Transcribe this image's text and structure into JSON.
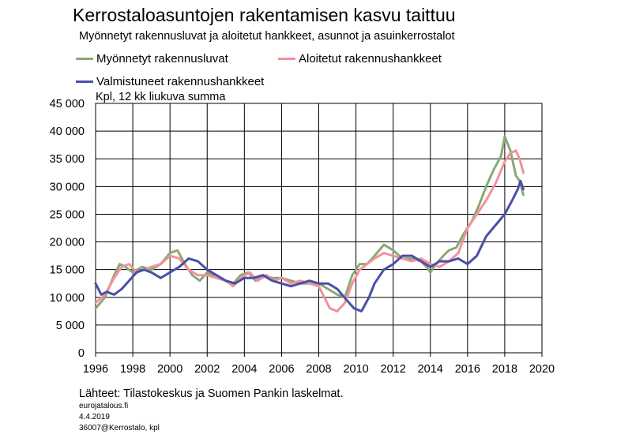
{
  "title": "Kerrostaloasuntojen rakentamisen kasvu taittuu",
  "subtitle": "Myönnetyt rakennusluvat ja aloitetut hankkeet, asunnot ja asuinkerrostalot",
  "unit_label": "Kpl, 12 kk liukuva summa",
  "source": "Lähteet: Tilastokeskus ja Suomen Pankin laskelmat.",
  "footer": {
    "site": "eurojatalous.fi",
    "date": "4.4.2019",
    "code": "36007@Kerrostalo, kpl"
  },
  "colors": {
    "permits": "#8aa875",
    "started": "#f2929b",
    "completed": "#4a4fa8",
    "grid": "#000000"
  },
  "chart_data": {
    "type": "line",
    "xlim": [
      1996,
      2020
    ],
    "ylim": [
      0,
      45000
    ],
    "x_ticks": [
      1996,
      1998,
      2000,
      2002,
      2004,
      2006,
      2008,
      2010,
      2012,
      2014,
      2016,
      2018,
      2020
    ],
    "x_tick_labels": [
      "1996",
      "1998",
      "2000",
      "2002",
      "2004",
      "2006",
      "2008",
      "2010",
      "2012",
      "2014",
      "2016",
      "2018",
      "2020"
    ],
    "y_ticks": [
      0,
      5000,
      10000,
      15000,
      20000,
      25000,
      30000,
      35000,
      40000,
      45000
    ],
    "y_tick_labels": [
      "0",
      "5 000",
      "10 000",
      "15 000",
      "20 000",
      "25 000",
      "30 000",
      "35 000",
      "40 000",
      "45 000"
    ],
    "grid": true,
    "legend_position": "top",
    "series": [
      {
        "key": "permits",
        "name": "Myönnetyt rakennusluvat",
        "points": [
          [
            1996.0,
            8000
          ],
          [
            1996.5,
            10000
          ],
          [
            1997.0,
            14000
          ],
          [
            1997.3,
            16000
          ],
          [
            1997.6,
            15500
          ],
          [
            1998.0,
            14500
          ],
          [
            1998.5,
            15500
          ],
          [
            1999.0,
            15000
          ],
          [
            1999.5,
            16000
          ],
          [
            2000.0,
            18000
          ],
          [
            2000.4,
            18500
          ],
          [
            2000.8,
            16000
          ],
          [
            2001.2,
            14000
          ],
          [
            2001.6,
            13000
          ],
          [
            2002.0,
            14500
          ],
          [
            2002.5,
            13500
          ],
          [
            2003.0,
            13000
          ],
          [
            2003.4,
            12500
          ],
          [
            2003.8,
            14000
          ],
          [
            2004.2,
            14500
          ],
          [
            2004.6,
            13000
          ],
          [
            2005.0,
            14000
          ],
          [
            2005.5,
            13500
          ],
          [
            2006.0,
            13500
          ],
          [
            2006.5,
            13000
          ],
          [
            2007.0,
            12500
          ],
          [
            2007.5,
            12500
          ],
          [
            2008.0,
            12500
          ],
          [
            2008.5,
            11500
          ],
          [
            2009.0,
            10500
          ],
          [
            2009.4,
            10000
          ],
          [
            2009.8,
            14000
          ],
          [
            2010.2,
            16000
          ],
          [
            2010.6,
            16000
          ],
          [
            2011.0,
            17500
          ],
          [
            2011.5,
            19500
          ],
          [
            2012.0,
            18500
          ],
          [
            2012.5,
            17000
          ],
          [
            2013.0,
            17000
          ],
          [
            2013.5,
            16500
          ],
          [
            2013.8,
            15500
          ],
          [
            2014.0,
            14500
          ],
          [
            2014.3,
            16000
          ],
          [
            2014.7,
            17500
          ],
          [
            2015.0,
            18500
          ],
          [
            2015.4,
            19000
          ],
          [
            2015.8,
            21500
          ],
          [
            2016.2,
            23500
          ],
          [
            2016.6,
            26500
          ],
          [
            2017.0,
            30000
          ],
          [
            2017.4,
            33000
          ],
          [
            2017.8,
            35500
          ],
          [
            2018.0,
            39000
          ],
          [
            2018.3,
            36500
          ],
          [
            2018.6,
            32000
          ],
          [
            2018.8,
            31000
          ],
          [
            2019.0,
            28500
          ]
        ]
      },
      {
        "key": "started",
        "name": "Aloitetut rakennushankkeet",
        "points": [
          [
            1996.0,
            9000
          ],
          [
            1996.5,
            10500
          ],
          [
            1997.0,
            13500
          ],
          [
            1997.4,
            15500
          ],
          [
            1997.8,
            16000
          ],
          [
            1998.2,
            14500
          ],
          [
            1998.6,
            15000
          ],
          [
            1999.0,
            15500
          ],
          [
            1999.5,
            16000
          ],
          [
            2000.0,
            17500
          ],
          [
            2000.5,
            17000
          ],
          [
            2001.0,
            15000
          ],
          [
            2001.5,
            14000
          ],
          [
            2002.0,
            14000
          ],
          [
            2002.5,
            13500
          ],
          [
            2003.0,
            13000
          ],
          [
            2003.4,
            12000
          ],
          [
            2003.8,
            13500
          ],
          [
            2004.3,
            14500
          ],
          [
            2004.7,
            13000
          ],
          [
            2005.2,
            14000
          ],
          [
            2005.6,
            13000
          ],
          [
            2006.0,
            13500
          ],
          [
            2006.5,
            12500
          ],
          [
            2007.0,
            13000
          ],
          [
            2007.5,
            12500
          ],
          [
            2008.0,
            12000
          ],
          [
            2008.3,
            10000
          ],
          [
            2008.6,
            8000
          ],
          [
            2009.0,
            7500
          ],
          [
            2009.4,
            9000
          ],
          [
            2009.8,
            12500
          ],
          [
            2010.2,
            15000
          ],
          [
            2010.6,
            16000
          ],
          [
            2011.0,
            17000
          ],
          [
            2011.5,
            18000
          ],
          [
            2012.0,
            17500
          ],
          [
            2012.5,
            17000
          ],
          [
            2013.0,
            16500
          ],
          [
            2013.5,
            17000
          ],
          [
            2014.0,
            16000
          ],
          [
            2014.5,
            15500
          ],
          [
            2015.0,
            16500
          ],
          [
            2015.5,
            18000
          ],
          [
            2016.0,
            22500
          ],
          [
            2016.5,
            25000
          ],
          [
            2017.0,
            27500
          ],
          [
            2017.5,
            30500
          ],
          [
            2018.0,
            34500
          ],
          [
            2018.3,
            36000
          ],
          [
            2018.6,
            36500
          ],
          [
            2018.8,
            35000
          ],
          [
            2019.0,
            32500
          ]
        ]
      },
      {
        "key": "completed",
        "name": "Valmistuneet rakennushankkeet",
        "points": [
          [
            1996.0,
            12500
          ],
          [
            1996.3,
            10500
          ],
          [
            1996.6,
            11000
          ],
          [
            1997.0,
            10500
          ],
          [
            1997.4,
            11500
          ],
          [
            1997.8,
            13000
          ],
          [
            1998.2,
            14500
          ],
          [
            1998.6,
            15000
          ],
          [
            1999.0,
            14500
          ],
          [
            1999.5,
            13500
          ],
          [
            2000.0,
            14500
          ],
          [
            2000.5,
            15500
          ],
          [
            2001.0,
            17000
          ],
          [
            2001.5,
            16500
          ],
          [
            2002.0,
            15000
          ],
          [
            2002.5,
            14000
          ],
          [
            2003.0,
            13000
          ],
          [
            2003.5,
            12500
          ],
          [
            2004.0,
            13500
          ],
          [
            2004.5,
            13500
          ],
          [
            2005.0,
            14000
          ],
          [
            2005.5,
            13000
          ],
          [
            2006.0,
            12500
          ],
          [
            2006.5,
            12000
          ],
          [
            2007.0,
            12500
          ],
          [
            2007.5,
            13000
          ],
          [
            2008.0,
            12500
          ],
          [
            2008.5,
            12500
          ],
          [
            2009.0,
            11500
          ],
          [
            2009.5,
            9500
          ],
          [
            2009.9,
            8000
          ],
          [
            2010.3,
            7500
          ],
          [
            2010.7,
            10000
          ],
          [
            2011.0,
            12500
          ],
          [
            2011.5,
            15000
          ],
          [
            2012.0,
            16000
          ],
          [
            2012.5,
            17500
          ],
          [
            2013.0,
            17500
          ],
          [
            2013.5,
            16500
          ],
          [
            2014.0,
            15500
          ],
          [
            2014.5,
            16500
          ],
          [
            2015.0,
            16500
          ],
          [
            2015.5,
            17000
          ],
          [
            2016.0,
            16000
          ],
          [
            2016.5,
            17500
          ],
          [
            2017.0,
            21000
          ],
          [
            2017.5,
            23000
          ],
          [
            2018.0,
            25000
          ],
          [
            2018.4,
            27500
          ],
          [
            2018.7,
            29500
          ],
          [
            2018.85,
            31000
          ],
          [
            2019.0,
            29500
          ]
        ]
      }
    ]
  }
}
